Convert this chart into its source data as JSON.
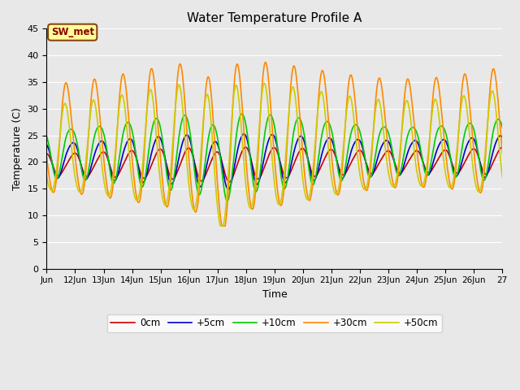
{
  "title": "Water Temperature Profile A",
  "xlabel": "Time",
  "ylabel": "Temperature (C)",
  "ylim": [
    0,
    45
  ],
  "yticks": [
    0,
    5,
    10,
    15,
    20,
    25,
    30,
    35,
    40,
    45
  ],
  "legend_labels": [
    "0cm",
    "+5cm",
    "+10cm",
    "+30cm",
    "+50cm"
  ],
  "legend_colors": [
    "#cc0000",
    "#0000cc",
    "#00cc00",
    "#ff8800",
    "#cccc00"
  ],
  "annotation_text": "SW_met",
  "annotation_color": "#8B0000",
  "annotation_bg": "#ffff99",
  "background_color": "#e8e8e8",
  "grid_color": "white",
  "line_width": 1.2,
  "x_start": 11,
  "x_end": 27,
  "x_ticks": [
    11,
    12,
    13,
    14,
    15,
    16,
    17,
    18,
    19,
    20,
    21,
    22,
    23,
    24,
    25,
    26,
    27
  ],
  "x_tick_labels": [
    "Jun",
    "12Jun",
    "13Jun",
    "14Jun",
    "15Jun",
    "16Jun",
    "17Jun",
    "18Jun",
    "19Jun",
    "20Jun",
    "21Jun",
    "22Jun",
    "23Jun",
    "24Jun",
    "25Jun",
    "26Jun",
    "27"
  ]
}
